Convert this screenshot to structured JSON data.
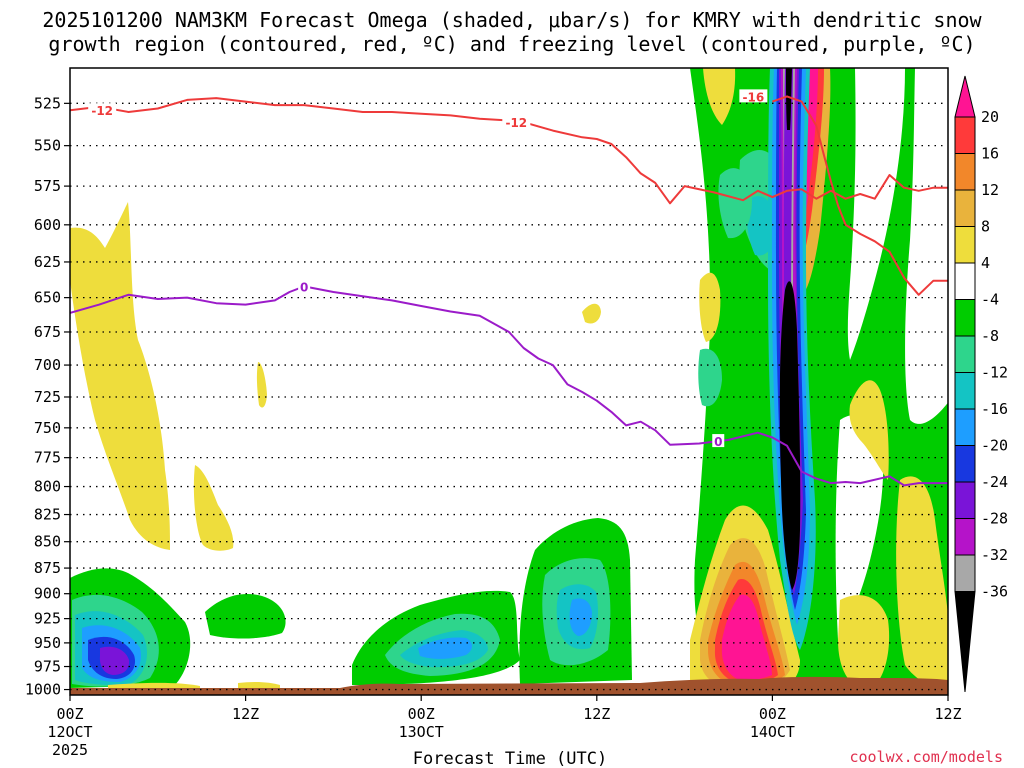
{
  "title": {
    "line1": "2025101200 NAM3KM Forecast Omega (shaded, μbar/s) for KMRY with dendritic snow",
    "line2": "growth region (contoured, red, ºC) and freezing level (contoured, purple, ºC)"
  },
  "credit": "coolwx.com/models",
  "colors": {
    "dendritic_contour": "#ee3a3a",
    "freezing_contour": "#9b1bc9",
    "ground": "#a0522d",
    "grid": "#000000"
  },
  "chart_data": {
    "type": "heatmap",
    "title": "2025101200 NAM3KM Forecast Omega (shaded, μbar/s) for KMRY with dendritic snow growth region (contoured, red, ºC) and freezing level (contoured, purple, ºC)",
    "xlabel": "Forecast Time (UTC)",
    "ylabel": "",
    "x_ticks": [
      {
        "hour": 0,
        "label": "00Z",
        "sub": "12OCT",
        "sub2": "2025"
      },
      {
        "hour": 12,
        "label": "12Z",
        "sub": "",
        "sub2": ""
      },
      {
        "hour": 24,
        "label": "00Z",
        "sub": "13OCT",
        "sub2": ""
      },
      {
        "hour": 36,
        "label": "12Z",
        "sub": "",
        "sub2": ""
      },
      {
        "hour": 48,
        "label": "00Z",
        "sub": "14OCT",
        "sub2": ""
      },
      {
        "hour": 60,
        "label": "12Z",
        "sub": "",
        "sub2": ""
      }
    ],
    "xlim": [
      0,
      60
    ],
    "y_ticks": [
      525,
      550,
      575,
      600,
      625,
      650,
      675,
      700,
      725,
      750,
      775,
      800,
      825,
      850,
      875,
      900,
      925,
      950,
      975,
      1000
    ],
    "ylim": [
      505,
      1006
    ],
    "y_scale": "log-pressure",
    "grid": true,
    "colorbar": {
      "labels": [
        "20",
        "16",
        "12",
        "8",
        "4",
        "-4",
        "-8",
        "-12",
        "-16",
        "-20",
        "-24",
        "-28",
        "-32",
        "-36"
      ],
      "bins": [
        {
          "range": ">20",
          "color": "#ff1493"
        },
        {
          "range": "16 to 20",
          "color": "#ff3a3a"
        },
        {
          "range": "12 to 16",
          "color": "#f2872a"
        },
        {
          "range": "8 to 12",
          "color": "#e9b33c"
        },
        {
          "range": "4 to 8",
          "color": "#eedd3c"
        },
        {
          "range": "-4 to 4",
          "color": "#ffffff"
        },
        {
          "range": "-8 to -4",
          "color": "#00cc00"
        },
        {
          "range": "-12 to -8",
          "color": "#2ed58c"
        },
        {
          "range": "-16 to -12",
          "color": "#14c4c4"
        },
        {
          "range": "-20 to -16",
          "color": "#1e9eff"
        },
        {
          "range": "-24 to -20",
          "color": "#1838e0"
        },
        {
          "range": "-28 to -24",
          "color": "#7a14d8"
        },
        {
          "range": "-32 to -28",
          "color": "#b513c9"
        },
        {
          "range": "-36 to -32",
          "color": "#a8a8a8"
        },
        {
          "range": "<-36",
          "color": "#000000"
        }
      ]
    },
    "series": [
      {
        "name": "-12",
        "kind": "dendritic",
        "color": "#ee3a3a",
        "points": [
          [
            0,
            529
          ],
          [
            2,
            527
          ],
          [
            4,
            530
          ],
          [
            6,
            528
          ],
          [
            8,
            523
          ],
          [
            10,
            522
          ],
          [
            12,
            524
          ],
          [
            14,
            526
          ],
          [
            16,
            526
          ],
          [
            18,
            528
          ],
          [
            20,
            530
          ],
          [
            22,
            530
          ],
          [
            24,
            531
          ],
          [
            26,
            532
          ],
          [
            28,
            534
          ],
          [
            30,
            535
          ],
          [
            31,
            536
          ],
          [
            33,
            541
          ],
          [
            35,
            545
          ],
          [
            36,
            546
          ],
          [
            37,
            549
          ],
          [
            38,
            557
          ],
          [
            39,
            567
          ],
          [
            40,
            573
          ],
          [
            41,
            586
          ],
          [
            42,
            575
          ],
          [
            44,
            579
          ],
          [
            46,
            584
          ],
          [
            47,
            578
          ],
          [
            48,
            582
          ],
          [
            49,
            578
          ],
          [
            50,
            577
          ],
          [
            51,
            583
          ],
          [
            52,
            578
          ],
          [
            53,
            583
          ],
          [
            54,
            580
          ],
          [
            55,
            583
          ],
          [
            56,
            568
          ],
          [
            57,
            576
          ],
          [
            58,
            578
          ],
          [
            59,
            576
          ],
          [
            60,
            576
          ]
        ]
      },
      {
        "name": "-16",
        "kind": "dendritic",
        "color": "#ee3a3a",
        "points": [
          [
            48,
            524
          ],
          [
            49,
            521
          ],
          [
            50,
            524
          ],
          [
            51,
            538
          ],
          [
            51.5,
            555
          ],
          [
            52,
            572
          ],
          [
            52.5,
            588
          ],
          [
            53,
            600
          ],
          [
            54,
            606
          ],
          [
            55,
            611
          ],
          [
            56,
            618
          ],
          [
            57,
            636
          ],
          [
            58,
            648
          ],
          [
            59,
            638
          ],
          [
            60,
            638
          ]
        ]
      },
      {
        "name": "0",
        "kind": "freezing",
        "color": "#9b1bc9",
        "points": [
          [
            0,
            661
          ],
          [
            2,
            655
          ],
          [
            4,
            648
          ],
          [
            6,
            651
          ],
          [
            8,
            650
          ],
          [
            10,
            654
          ],
          [
            12,
            655
          ],
          [
            14,
            652
          ],
          [
            15,
            646
          ],
          [
            16,
            642
          ],
          [
            18,
            646
          ],
          [
            20,
            649
          ],
          [
            22,
            652
          ],
          [
            24,
            656
          ],
          [
            26,
            660
          ],
          [
            28,
            663
          ],
          [
            30,
            675
          ],
          [
            31,
            687
          ],
          [
            32,
            695
          ],
          [
            33,
            700
          ],
          [
            34,
            715
          ],
          [
            35,
            721
          ],
          [
            36,
            728
          ],
          [
            37,
            737
          ],
          [
            38,
            748
          ],
          [
            39,
            745
          ],
          [
            40,
            752
          ],
          [
            41,
            764
          ],
          [
            43,
            763
          ],
          [
            45,
            760
          ],
          [
            47,
            754
          ],
          [
            48,
            758
          ],
          [
            49,
            765
          ],
          [
            50,
            787
          ],
          [
            51,
            793
          ],
          [
            52,
            797
          ],
          [
            53,
            796
          ],
          [
            54,
            797
          ],
          [
            56,
            791
          ],
          [
            57,
            799
          ],
          [
            58,
            797
          ],
          [
            60,
            797
          ]
        ]
      }
    ],
    "contour_labels": [
      {
        "text": "-12",
        "hour": 2.2,
        "p": 529,
        "color": "#ee3a3a"
      },
      {
        "text": "-12",
        "hour": 30.5,
        "p": 536,
        "color": "#ee3a3a"
      },
      {
        "text": "-16",
        "hour": 46.7,
        "p": 521,
        "color": "#ee3a3a"
      },
      {
        "text": "0",
        "hour": 16,
        "p": 642,
        "color": "#9b1bc9"
      },
      {
        "text": "0",
        "hour": 44.3,
        "p": 761,
        "color": "#9b1bc9"
      }
    ]
  }
}
